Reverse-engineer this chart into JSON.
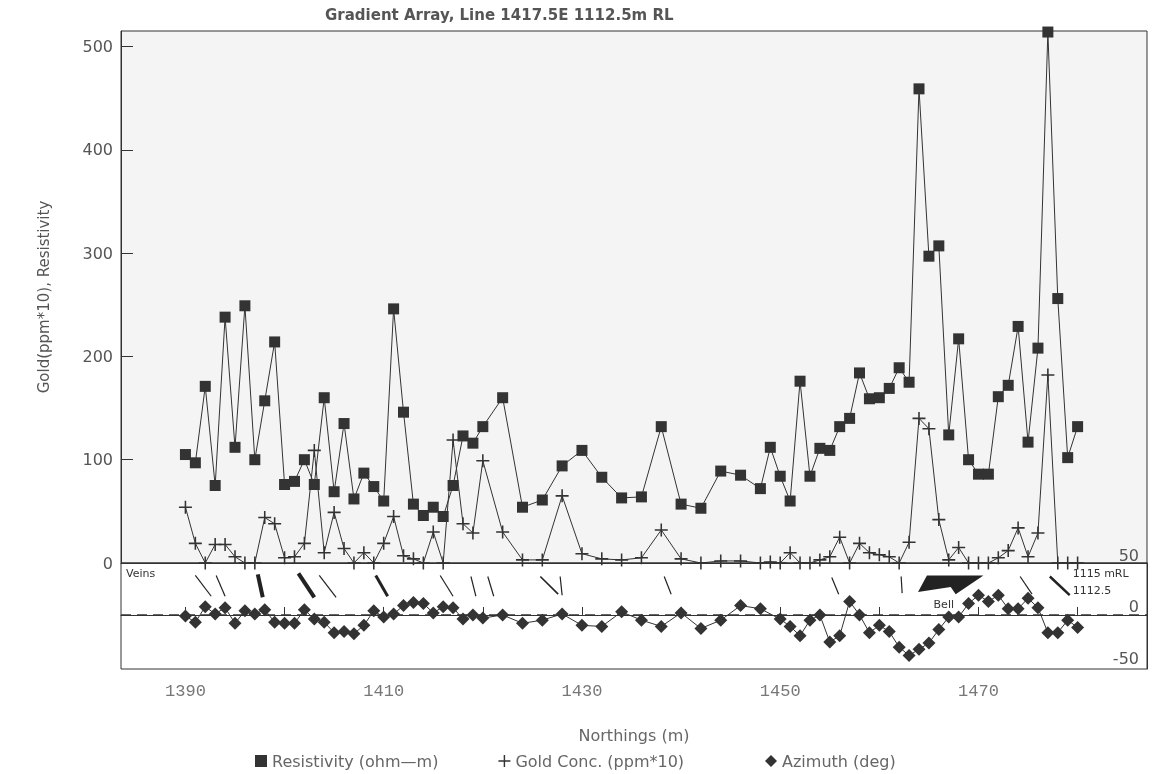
{
  "chart_data": [
    {
      "type": "line",
      "title": "Gradient Array, Line 1417.5E 1112.5m RL",
      "ylabel": "Gold(ppm*10), Resistivity",
      "series": [
        {
          "name": "Resistivity (ohm—m)",
          "color": "#333333",
          "marker": "square",
          "x": [
            1390,
            1391,
            1392,
            1393,
            1394,
            1395,
            1396,
            1397,
            1398,
            1399,
            1400,
            1401,
            1402,
            1403,
            1404,
            1405,
            1406,
            1407,
            1408,
            1409,
            1410,
            1411,
            1412,
            1413,
            1414,
            1415,
            1416,
            1417,
            1418,
            1419,
            1420,
            1422,
            1424,
            1426,
            1428,
            1430,
            1432,
            1434,
            1436,
            1438,
            1440,
            1442,
            1444,
            1446,
            1448,
            1449,
            1450,
            1451,
            1452,
            1453,
            1454,
            1455,
            1456,
            1457,
            1458,
            1459,
            1460,
            1461,
            1462,
            1463,
            1464,
            1465,
            1466,
            1467,
            1468,
            1469,
            1470,
            1471,
            1472,
            1473,
            1474,
            1475,
            1476,
            1477,
            1478,
            1479,
            1480
          ],
          "values": [
            105,
            97,
            171,
            75,
            238,
            112,
            249,
            100,
            157,
            214,
            76,
            79,
            100,
            76,
            160,
            69,
            135,
            62,
            87,
            74,
            60,
            246,
            146,
            57,
            46,
            54,
            45,
            75,
            123,
            116,
            132,
            160,
            54,
            61,
            94,
            109,
            83,
            63,
            64,
            132,
            57,
            53,
            89,
            85,
            72,
            112,
            84,
            60,
            176,
            84,
            111,
            109,
            132,
            140,
            184,
            159,
            160,
            169,
            189,
            175,
            459,
            297,
            307,
            124,
            217,
            100,
            86,
            86,
            161,
            172,
            229,
            117,
            208,
            514,
            256,
            102,
            132
          ]
        },
        {
          "name": "Gold Conc. (ppm*10)",
          "color": "#333333",
          "marker": "cross",
          "x": [
            1390,
            1391,
            1392,
            1393,
            1394,
            1395,
            1396,
            1397,
            1398,
            1399,
            1400,
            1401,
            1402,
            1403,
            1404,
            1405,
            1406,
            1407,
            1408,
            1409,
            1410,
            1411,
            1412,
            1413,
            1414,
            1415,
            1416,
            1417,
            1418,
            1419,
            1420,
            1422,
            1424,
            1426,
            1428,
            1430,
            1432,
            1434,
            1436,
            1438,
            1440,
            1442,
            1444,
            1446,
            1448,
            1449,
            1450,
            1451,
            1452,
            1453,
            1454,
            1455,
            1456,
            1457,
            1458,
            1459,
            1460,
            1461,
            1462,
            1463,
            1464,
            1465,
            1466,
            1467,
            1468,
            1469,
            1470,
            1471,
            1472,
            1473,
            1474,
            1475,
            1476,
            1477,
            1478,
            1479,
            1480
          ],
          "values": [
            54,
            19,
            0,
            18,
            18,
            6,
            0,
            0,
            44,
            38,
            5,
            6,
            19,
            109,
            10,
            49,
            14,
            0,
            10,
            0,
            19,
            45,
            7,
            4,
            0,
            30,
            0,
            119,
            38,
            29,
            99,
            30,
            3,
            3,
            65,
            9,
            4,
            3,
            5,
            32,
            4,
            0,
            2,
            2,
            0,
            1,
            0,
            10,
            0,
            0,
            3,
            6,
            25,
            0,
            19,
            10,
            8,
            6,
            0,
            20,
            140,
            130,
            42,
            3,
            15,
            0,
            0,
            0,
            5,
            12,
            34,
            6,
            29,
            182,
            0,
            0,
            0
          ]
        }
      ],
      "xlim": [
        1383.5,
        1487
      ],
      "ylim": [
        0,
        515
      ],
      "yticks": [
        0,
        100,
        200,
        300,
        400,
        500
      ],
      "tick_labels": "y",
      "grid": false,
      "legend": "bottom",
      "line_style": "solid"
    },
    {
      "type": "line",
      "xlabel": "Northings (m)",
      "series": [
        {
          "name": "Azimuth (deg)",
          "color": "#333333",
          "marker": "diamond",
          "axis": "y2",
          "x": [
            1390,
            1391,
            1392,
            1393,
            1394,
            1395,
            1396,
            1397,
            1398,
            1399,
            1400,
            1401,
            1402,
            1403,
            1404,
            1405,
            1406,
            1407,
            1408,
            1409,
            1410,
            1411,
            1412,
            1413,
            1414,
            1415,
            1416,
            1417,
            1418,
            1419,
            1420,
            1422,
            1424,
            1426,
            1428,
            1430,
            1432,
            1434,
            1436,
            1438,
            1440,
            1442,
            1444,
            1446,
            1448,
            1450,
            1451,
            1452,
            1453,
            1454,
            1455,
            1456,
            1457,
            1458,
            1459,
            1460,
            1461,
            1462,
            1463,
            1464,
            1465,
            1466,
            1467,
            1468,
            1469,
            1470,
            1471,
            1472,
            1473,
            1474,
            1475,
            1476,
            1477,
            1478,
            1479,
            1480
          ],
          "values": [
            -1,
            -7,
            8,
            1,
            7,
            -8,
            4,
            1,
            5,
            -7,
            -8,
            -8,
            5,
            -4,
            -7,
            -17,
            -16,
            -18,
            -10,
            4,
            -2,
            1,
            9,
            12,
            11,
            2,
            8,
            7,
            -4,
            0,
            -3,
            0,
            -8,
            -5,
            1,
            -10,
            -11,
            3,
            -5,
            -11,
            2,
            -13,
            -5,
            9,
            6,
            -4,
            -11,
            -20,
            -5,
            0,
            -26,
            -20,
            13,
            0,
            -17,
            -10,
            -16,
            -31,
            -39,
            -33,
            -27,
            -14,
            -2,
            -2,
            11,
            19,
            13,
            19,
            6,
            6,
            16,
            7,
            -17,
            -17,
            -5,
            -12
          ]
        }
      ],
      "xlim": [
        1383.5,
        1487
      ],
      "xticks": [
        1390,
        {
          "value": 1400,
          "label": null
        },
        1410,
        {
          "value": 1420,
          "label": null
        },
        1430,
        {
          "value": 1440,
          "label": null
        },
        1450,
        {
          "value": 1460,
          "label": null
        },
        1470,
        {
          "value": 1480,
          "label": null
        }
      ],
      "y2lim": [
        -52,
        50
      ],
      "y2ticks": [
        50,
        0,
        -50
      ],
      "ref_lines": [
        {
          "axis": "y2",
          "value": 0,
          "line_style": "dashed"
        }
      ],
      "annotations": [
        "Veins",
        "Bell",
        "1115 mRL",
        "1112.5"
      ],
      "grid": false,
      "legend": "bottom",
      "line_style": "solid"
    }
  ]
}
